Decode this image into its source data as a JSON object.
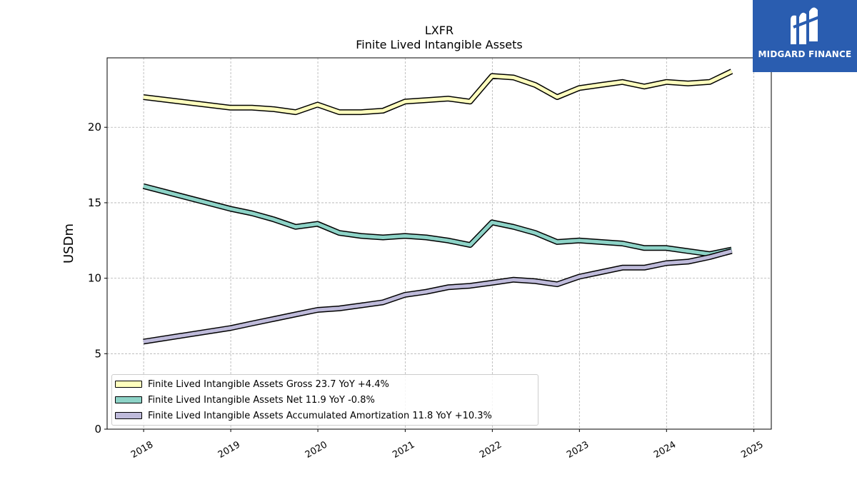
{
  "header": {
    "ticker": "LXFR",
    "subtitle": "Finite Lived Intangible Assets"
  },
  "logo": {
    "text": "MIDGARD FINANCE",
    "background": "#2a5db0"
  },
  "chart_data": {
    "type": "line",
    "title": "LXFR",
    "subtitle": "Finite Lived Intangible Assets",
    "xlabel": "",
    "ylabel": "USDm",
    "xlim": [
      "2017-08-01",
      "2025-03-15"
    ],
    "ylim": [
      0,
      24.6
    ],
    "xticks": [
      "2018",
      "2019",
      "2020",
      "2021",
      "2022",
      "2023",
      "2024",
      "2025"
    ],
    "yticks": [
      0,
      5,
      10,
      15,
      20
    ],
    "grid": true,
    "legend_position": "lower-left",
    "series": [
      {
        "name": "Finite Lived Intangible Assets Gross",
        "legend_label": "Finite Lived Intangible Assets Gross  23.7 YoY +4.4%",
        "color": "#ffffbe",
        "points": [
          [
            "2017-12-31",
            22.0
          ],
          [
            "2018-12-31",
            21.3
          ],
          [
            "2019-03-31",
            21.3
          ],
          [
            "2019-06-30",
            21.2
          ],
          [
            "2019-09-30",
            21.0
          ],
          [
            "2019-12-31",
            21.5
          ],
          [
            "2020-03-31",
            21.0
          ],
          [
            "2020-06-30",
            21.0
          ],
          [
            "2020-09-30",
            21.1
          ],
          [
            "2020-12-31",
            21.7
          ],
          [
            "2021-03-31",
            21.8
          ],
          [
            "2021-06-30",
            21.9
          ],
          [
            "2021-09-30",
            21.7
          ],
          [
            "2021-12-31",
            23.4
          ],
          [
            "2022-03-31",
            23.3
          ],
          [
            "2022-06-30",
            22.8
          ],
          [
            "2022-09-30",
            22.0
          ],
          [
            "2022-12-31",
            22.6
          ],
          [
            "2023-03-31",
            22.8
          ],
          [
            "2023-06-30",
            23.0
          ],
          [
            "2023-09-30",
            22.7
          ],
          [
            "2023-12-31",
            23.0
          ],
          [
            "2024-03-31",
            22.9
          ],
          [
            "2024-06-30",
            23.0
          ],
          [
            "2024-09-30",
            23.7
          ]
        ]
      },
      {
        "name": "Finite Lived Intangible Assets Net",
        "legend_label": "Finite Lived Intangible Assets Net  11.9 YoY -0.8%",
        "color": "#8dd3c7",
        "points": [
          [
            "2017-12-31",
            16.1
          ],
          [
            "2018-12-31",
            14.6
          ],
          [
            "2019-03-31",
            14.3
          ],
          [
            "2019-06-30",
            13.9
          ],
          [
            "2019-09-30",
            13.4
          ],
          [
            "2019-12-31",
            13.6
          ],
          [
            "2020-03-31",
            13.0
          ],
          [
            "2020-06-30",
            12.8
          ],
          [
            "2020-09-30",
            12.7
          ],
          [
            "2020-12-31",
            12.8
          ],
          [
            "2021-03-31",
            12.7
          ],
          [
            "2021-06-30",
            12.5
          ],
          [
            "2021-09-30",
            12.2
          ],
          [
            "2021-12-31",
            13.7
          ],
          [
            "2022-03-31",
            13.4
          ],
          [
            "2022-06-30",
            13.0
          ],
          [
            "2022-09-30",
            12.4
          ],
          [
            "2022-12-31",
            12.5
          ],
          [
            "2023-03-31",
            12.4
          ],
          [
            "2023-06-30",
            12.3
          ],
          [
            "2023-09-30",
            12.0
          ],
          [
            "2023-12-31",
            12.0
          ],
          [
            "2024-03-31",
            11.8
          ],
          [
            "2024-06-30",
            11.6
          ],
          [
            "2024-09-30",
            11.9
          ]
        ]
      },
      {
        "name": "Finite Lived Intangible Assets Accumulated Amortization",
        "legend_label": "Finite Lived Intangible Assets Accumulated Amortization  11.8 YoY +10.3%",
        "color": "#bebada",
        "points": [
          [
            "2017-12-31",
            5.8
          ],
          [
            "2018-12-31",
            6.7
          ],
          [
            "2019-03-31",
            7.0
          ],
          [
            "2019-06-30",
            7.3
          ],
          [
            "2019-09-30",
            7.6
          ],
          [
            "2019-12-31",
            7.9
          ],
          [
            "2020-03-31",
            8.0
          ],
          [
            "2020-06-30",
            8.2
          ],
          [
            "2020-09-30",
            8.4
          ],
          [
            "2020-12-31",
            8.9
          ],
          [
            "2021-03-31",
            9.1
          ],
          [
            "2021-06-30",
            9.4
          ],
          [
            "2021-09-30",
            9.5
          ],
          [
            "2021-12-31",
            9.7
          ],
          [
            "2022-03-31",
            9.9
          ],
          [
            "2022-06-30",
            9.8
          ],
          [
            "2022-09-30",
            9.6
          ],
          [
            "2022-12-31",
            10.1
          ],
          [
            "2023-03-31",
            10.4
          ],
          [
            "2023-06-30",
            10.7
          ],
          [
            "2023-09-30",
            10.7
          ],
          [
            "2023-12-31",
            11.0
          ],
          [
            "2024-03-31",
            11.1
          ],
          [
            "2024-06-30",
            11.4
          ],
          [
            "2024-09-30",
            11.8
          ]
        ]
      }
    ]
  }
}
